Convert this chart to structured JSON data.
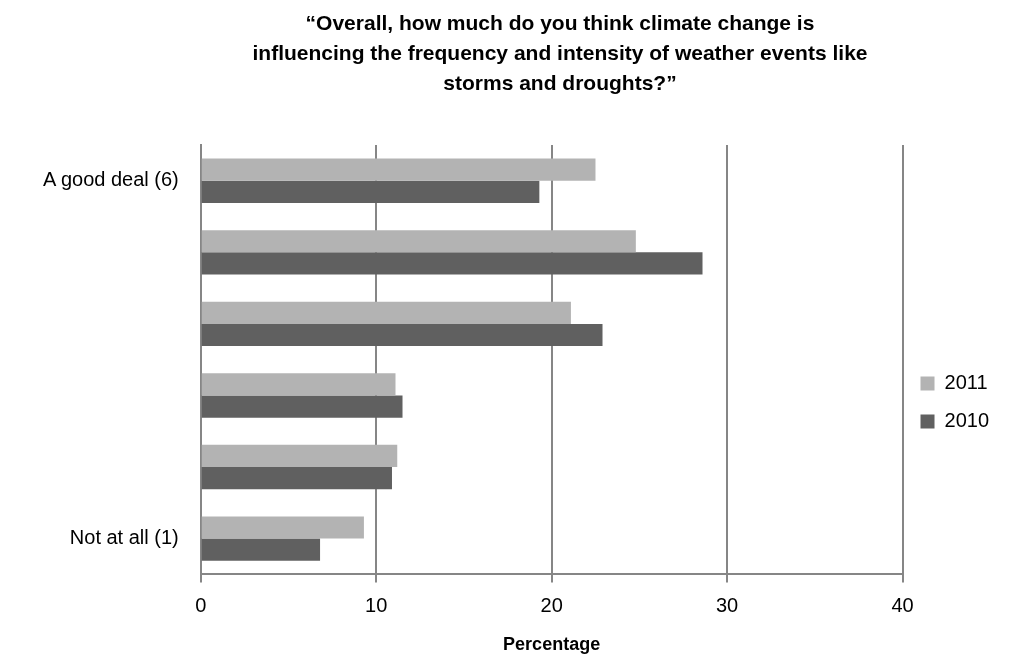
{
  "chart_data": {
    "type": "bar",
    "orientation": "horizontal",
    "title": "“Overall, how much do you think climate change is influencing the frequency and intensity of weather events like storms and droughts?”",
    "xlabel": "Percentage",
    "categories": [
      "A good deal (6)",
      null,
      null,
      null,
      null,
      "Not at all (1)"
    ],
    "series": [
      {
        "name": "2011",
        "color": "#b3b3b3",
        "values": [
          22.5,
          24.8,
          21.1,
          11.1,
          11.2,
          9.3
        ]
      },
      {
        "name": "2010",
        "color": "#606060",
        "values": [
          19.3,
          28.6,
          22.9,
          11.5,
          10.9,
          6.8
        ]
      }
    ],
    "xlim": [
      0,
      40
    ],
    "xticks": [
      0,
      10,
      20,
      30,
      40
    ],
    "grid": "x",
    "legend": "right"
  }
}
